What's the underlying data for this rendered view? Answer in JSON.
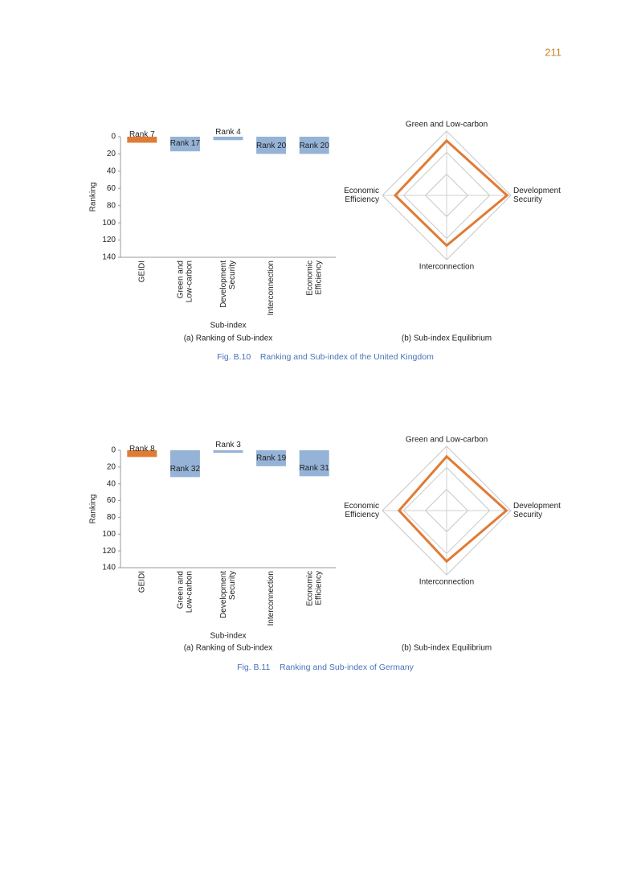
{
  "page_number": "211",
  "chart_data": [
    {
      "type": "bar",
      "subtitle": "(a) Ranking of Sub-index",
      "x_label": "Sub-index",
      "y_label": "Ranking",
      "categories": [
        [
          "GEIDI"
        ],
        [
          "Green and",
          "Low-carbon"
        ],
        [
          "Development",
          "Security"
        ],
        [
          "Interconnection"
        ],
        [
          "Economic",
          "Efficiency"
        ]
      ],
      "values": [
        7,
        17,
        4,
        20,
        20
      ],
      "value_labels": [
        "Rank 7",
        "Rank 17",
        "Rank 4",
        "Rank 20",
        "Rank 20"
      ],
      "colors": [
        "#e07b35",
        "#95b3d7",
        "#95b3d7",
        "#95b3d7",
        "#95b3d7"
      ],
      "ylim": [
        0,
        140
      ],
      "yticks": [
        0,
        20,
        40,
        60,
        80,
        100,
        120,
        140
      ],
      "y_inverted": true
    },
    {
      "type": "radar",
      "subtitle": "(b) Sub-index Equilibrium",
      "categories": [
        [
          "Green and Low-carbon"
        ],
        [
          "Development",
          "Security"
        ],
        [
          "Interconnection"
        ],
        [
          "Economic",
          "Efficiency"
        ]
      ],
      "values": [
        0.85,
        0.94,
        0.78,
        0.8
      ],
      "color": "#e07b35",
      "rlim": [
        0,
        1
      ],
      "rticks": [
        0.33,
        0.67,
        1
      ]
    },
    {
      "type": "bar",
      "subtitle": "(a) Ranking of Sub-index",
      "x_label": "Sub-index",
      "y_label": "Ranking",
      "categories": [
        [
          "GEIDI"
        ],
        [
          "Green and",
          "Low-carbon"
        ],
        [
          "Development",
          "Security"
        ],
        [
          "Interconnection"
        ],
        [
          "Economic",
          "Efficiency"
        ]
      ],
      "values": [
        8,
        32,
        3,
        19,
        31
      ],
      "value_labels": [
        "Rank 8",
        "Rank 32",
        "Rank 3",
        "Rank 19",
        "Rank 31"
      ],
      "colors": [
        "#e07b35",
        "#95b3d7",
        "#95b3d7",
        "#95b3d7",
        "#95b3d7"
      ],
      "ylim": [
        0,
        140
      ],
      "yticks": [
        0,
        20,
        40,
        60,
        80,
        100,
        120,
        140
      ],
      "y_inverted": true
    },
    {
      "type": "radar",
      "subtitle": "(b) Sub-index Equilibrium",
      "categories": [
        [
          "Green and Low-carbon"
        ],
        [
          "Development",
          "Security"
        ],
        [
          "Interconnection"
        ],
        [
          "Economic",
          "Efficiency"
        ]
      ],
      "values": [
        0.84,
        0.93,
        0.79,
        0.74
      ],
      "color": "#e07b35",
      "rlim": [
        0,
        1
      ],
      "rticks": [
        0.33,
        0.67,
        1
      ]
    }
  ],
  "captions": [
    "Fig. B.10    Ranking and Sub-index of the United Kingdom",
    "Fig. B.11    Ranking and Sub-index of Germany"
  ]
}
